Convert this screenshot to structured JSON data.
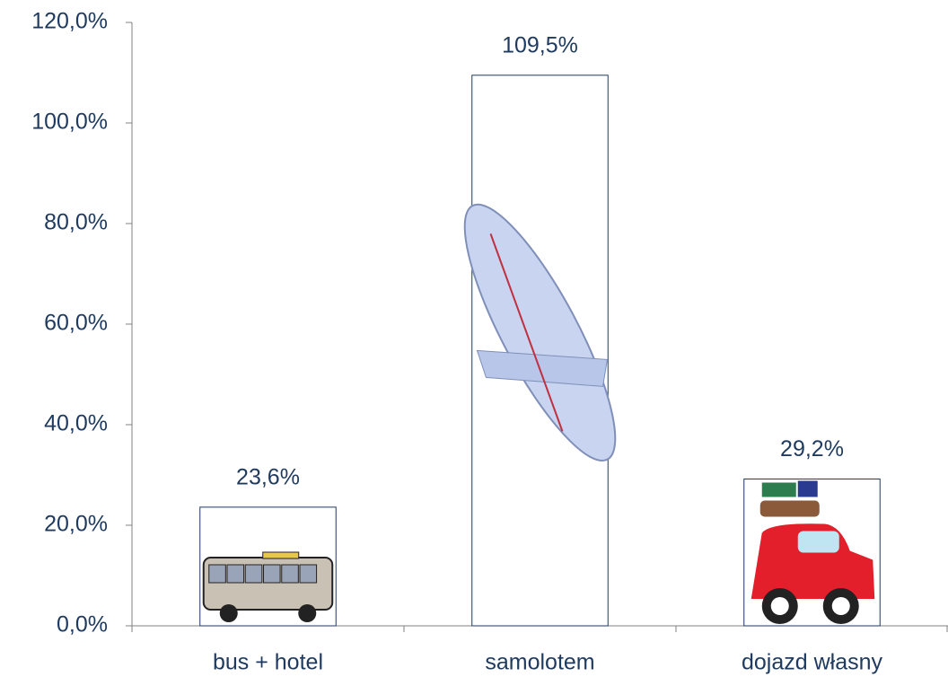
{
  "chart_data": {
    "type": "bar",
    "categories": [
      "bus + hotel",
      "samolotem",
      "dojazd własny"
    ],
    "values": [
      23.6,
      109.5,
      29.2
    ],
    "value_labels": [
      "23,6%",
      "109,5%",
      "29,2%"
    ],
    "color": "#ffffff",
    "ylim": [
      0,
      120
    ],
    "yticks": [
      {
        "value": 0,
        "label": "0,0%"
      },
      {
        "value": 20,
        "label": "20,0%"
      },
      {
        "value": 40,
        "label": "40,0%"
      },
      {
        "value": 60,
        "label": "60,0%"
      },
      {
        "value": 80,
        "label": "80,0%"
      },
      {
        "value": 100,
        "label": "100,0%"
      },
      {
        "value": 120,
        "label": "120,0%"
      }
    ],
    "grid": false
  }
}
